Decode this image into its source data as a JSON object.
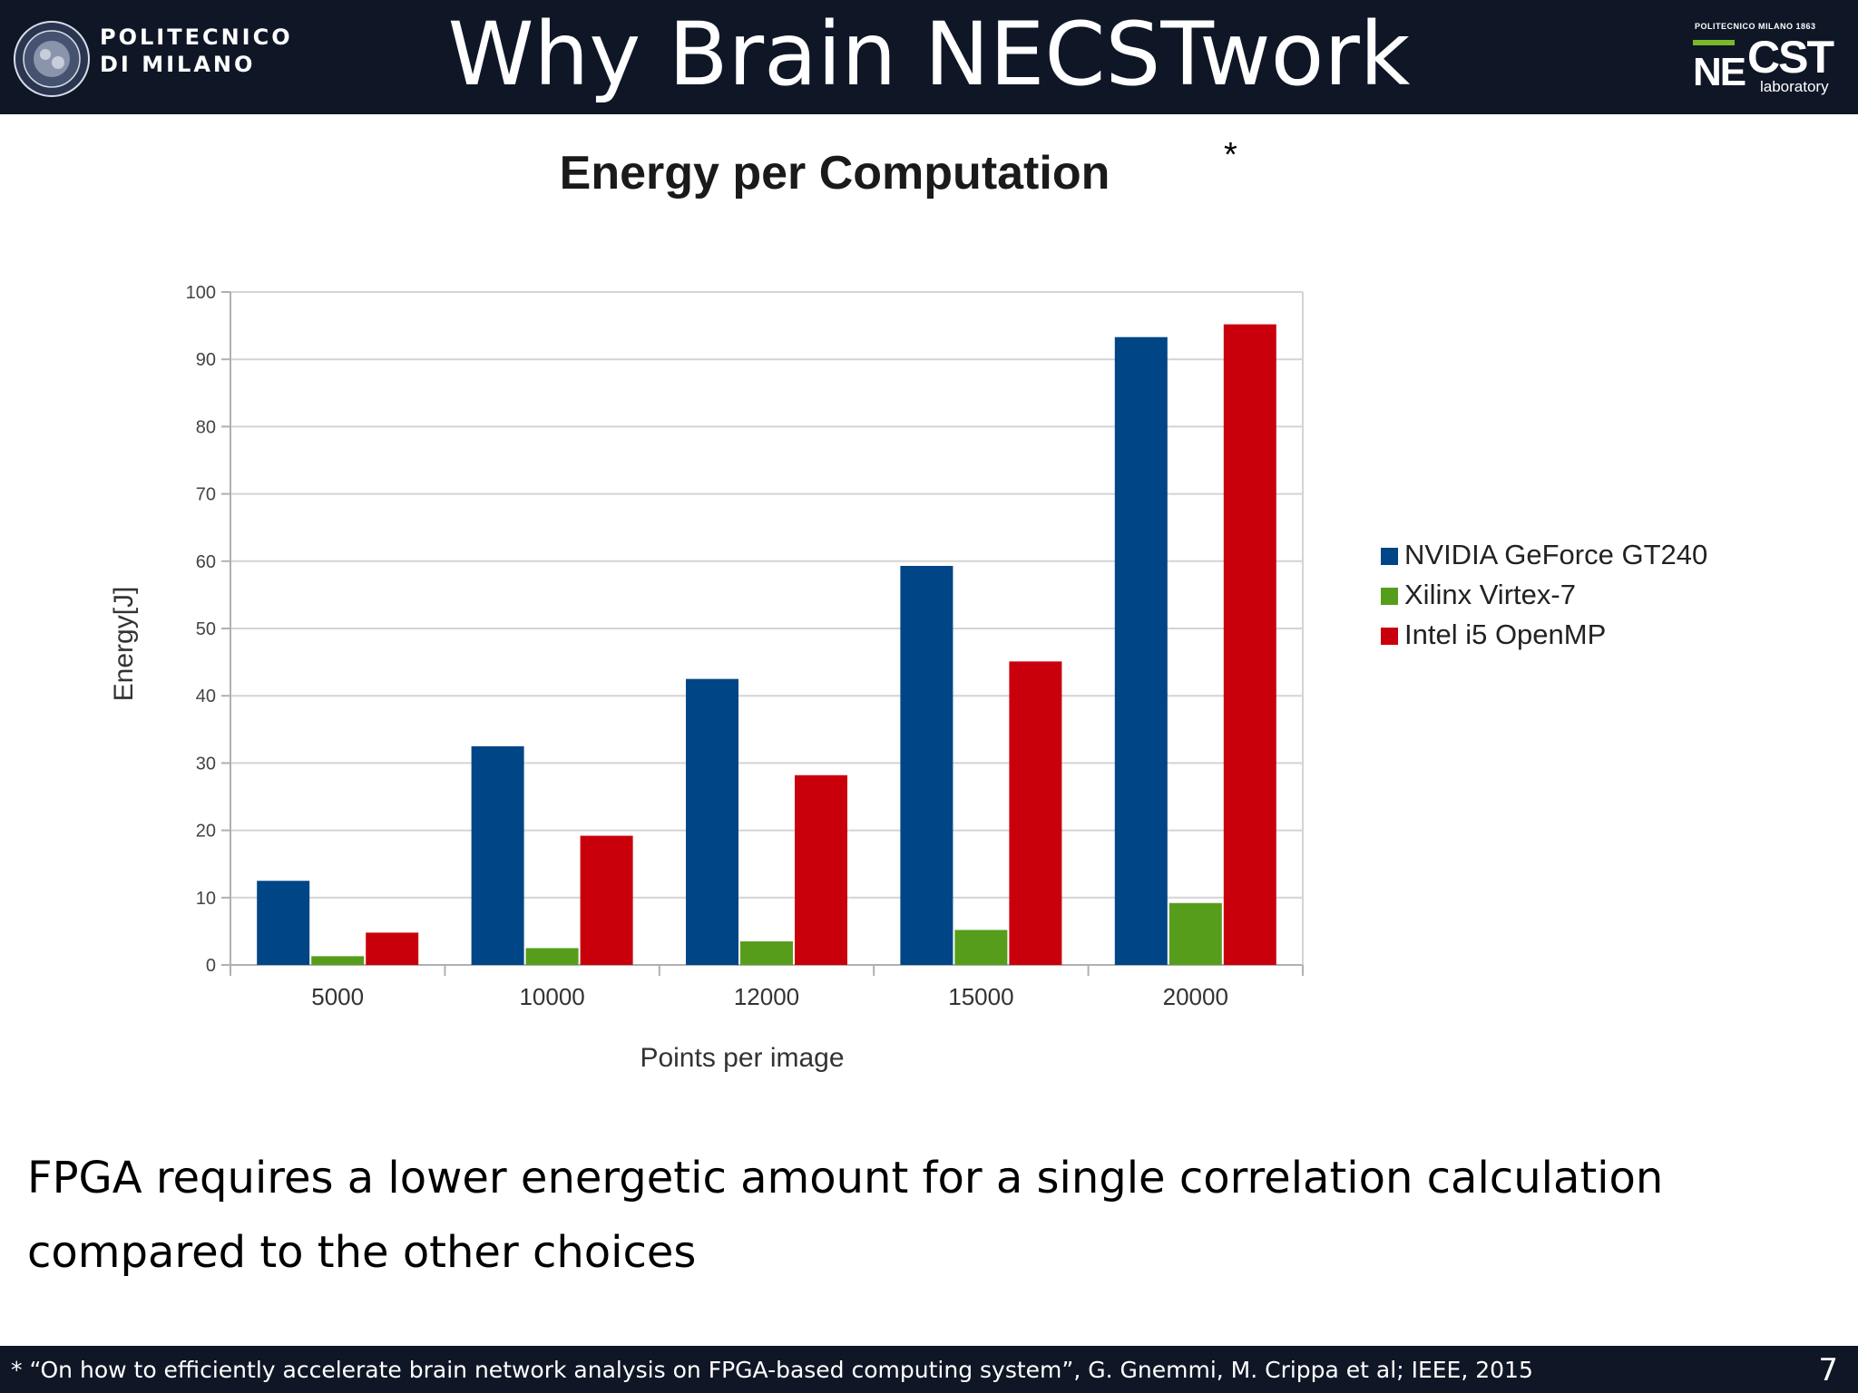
{
  "header": {
    "logo_left_lines": [
      "POLITECNICO",
      "DI MILANO"
    ],
    "title": "Why Brain NECSTwork",
    "logo_right": {
      "top_text": "POLITECNICO MILANO 1863",
      "ne": "NE",
      "cst": "CST",
      "sub": "laboratory"
    }
  },
  "chart_title_marker": "*",
  "chart_data": {
    "type": "bar",
    "title": "Energy per Computation",
    "xlabel": "Points per image",
    "ylabel": "Energy[J]",
    "categories": [
      "5000",
      "10000",
      "12000",
      "15000",
      "20000"
    ],
    "ylim": [
      0,
      100
    ],
    "yticks": [
      0,
      10,
      20,
      30,
      40,
      50,
      60,
      70,
      80,
      90,
      100
    ],
    "grid": true,
    "legend_position": "right",
    "series": [
      {
        "name": "NVIDIA GeForce GT240",
        "color": "#004586",
        "values": [
          12.5,
          32.5,
          42.5,
          59.3,
          93.3
        ]
      },
      {
        "name": "Xilinx Virtex-7",
        "color": "#579d1c",
        "values": [
          1.3,
          2.5,
          3.5,
          5.2,
          9.2
        ]
      },
      {
        "name": "Intel i5 OpenMP",
        "color": "#c9000b",
        "values": [
          4.8,
          19.2,
          28.2,
          45.1,
          95.2
        ]
      }
    ]
  },
  "caption": "FPGA requires a lower energetic amount for a single correlation calculation compared to the other choices",
  "footer": {
    "reference": "* “On how to efficiently accelerate brain network analysis on FPGA-based computing system”, G. Gnemmi, M. Crippa et al; IEEE, 2015",
    "page_number": "7"
  }
}
